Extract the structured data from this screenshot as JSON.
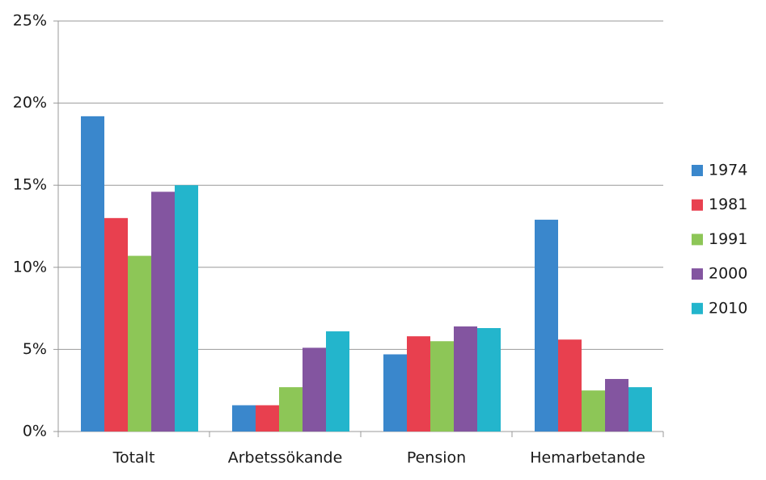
{
  "chart_data": {
    "type": "bar",
    "categories": [
      "Totalt",
      "Arbetssökande",
      "Pension",
      "Hemarbetande"
    ],
    "series": [
      {
        "name": "1974",
        "color": "#3a87cc",
        "values": [
          19.2,
          1.6,
          4.7,
          12.9
        ]
      },
      {
        "name": "1981",
        "color": "#e8404f",
        "values": [
          13.0,
          1.6,
          5.8,
          5.6
        ]
      },
      {
        "name": "1991",
        "color": "#8dc657",
        "values": [
          10.7,
          2.7,
          5.5,
          2.5
        ]
      },
      {
        "name": "2000",
        "color": "#8355a0",
        "values": [
          14.6,
          5.1,
          6.4,
          3.2
        ]
      },
      {
        "name": "2010",
        "color": "#23b5cc",
        "values": [
          15.0,
          6.1,
          6.3,
          2.7
        ]
      }
    ],
    "ylim": [
      0,
      25
    ],
    "yticks": [
      {
        "value": 0,
        "label": "0%"
      },
      {
        "value": 5,
        "label": "5%"
      },
      {
        "value": 10,
        "label": "10%"
      },
      {
        "value": 15,
        "label": "15%"
      },
      {
        "value": 20,
        "label": "20%"
      },
      {
        "value": 25,
        "label": "25%"
      }
    ],
    "grid": true,
    "legend": "right"
  }
}
